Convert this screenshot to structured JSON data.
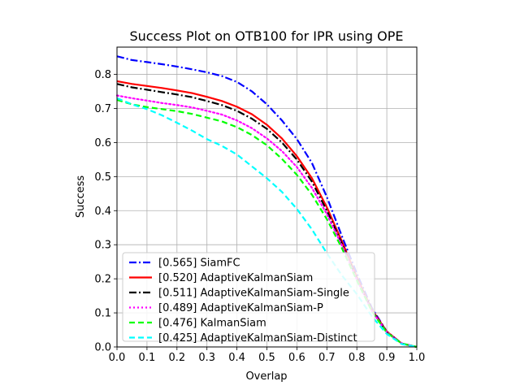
{
  "chart_data": {
    "type": "line",
    "title": "Success Plot on OTB100 for IPR using OPE",
    "xlabel": "Overlap",
    "ylabel": "Success",
    "xlim": [
      0.0,
      1.0
    ],
    "ylim": [
      0.0,
      0.88
    ],
    "xticks": [
      "0.0",
      "0.1",
      "0.2",
      "0.3",
      "0.4",
      "0.5",
      "0.6",
      "0.7",
      "0.8",
      "0.9",
      "1.0"
    ],
    "yticks": [
      "0.0",
      "0.1",
      "0.2",
      "0.3",
      "0.4",
      "0.5",
      "0.6",
      "0.7",
      "0.8"
    ],
    "grid": true,
    "legend_position": "lower-left",
    "series": [
      {
        "name": "[0.565] SiamFC",
        "color": "#0000ff",
        "linestyle": "dashdot",
        "x": [
          0.0,
          0.05,
          0.1,
          0.15,
          0.2,
          0.25,
          0.3,
          0.35,
          0.4,
          0.45,
          0.5,
          0.55,
          0.6,
          0.65,
          0.7,
          0.75,
          0.8,
          0.85,
          0.9,
          0.95,
          1.0
        ],
        "y": [
          0.853,
          0.842,
          0.836,
          0.83,
          0.823,
          0.815,
          0.806,
          0.795,
          0.778,
          0.75,
          0.712,
          0.665,
          0.61,
          0.54,
          0.44,
          0.325,
          0.215,
          0.115,
          0.045,
          0.01,
          0.0
        ]
      },
      {
        "name": "[0.520] AdaptiveKalmanSiam",
        "color": "#ff0000",
        "linestyle": "solid",
        "x": [
          0.0,
          0.05,
          0.1,
          0.15,
          0.2,
          0.25,
          0.3,
          0.35,
          0.4,
          0.45,
          0.5,
          0.55,
          0.6,
          0.65,
          0.7,
          0.75,
          0.8,
          0.85,
          0.9,
          0.95,
          1.0
        ],
        "y": [
          0.78,
          0.772,
          0.766,
          0.76,
          0.753,
          0.745,
          0.734,
          0.722,
          0.705,
          0.683,
          0.652,
          0.612,
          0.56,
          0.495,
          0.41,
          0.31,
          0.205,
          0.11,
          0.045,
          0.01,
          0.0
        ]
      },
      {
        "name": "[0.511] AdaptiveKalmanSiam-Single",
        "color": "#000000",
        "linestyle": "dashdot",
        "x": [
          0.0,
          0.05,
          0.1,
          0.15,
          0.2,
          0.25,
          0.3,
          0.35,
          0.4,
          0.45,
          0.5,
          0.55,
          0.6,
          0.65,
          0.7,
          0.75,
          0.8,
          0.85,
          0.9,
          0.95,
          1.0
        ],
        "y": [
          0.772,
          0.762,
          0.755,
          0.748,
          0.741,
          0.733,
          0.722,
          0.71,
          0.693,
          0.67,
          0.64,
          0.6,
          0.55,
          0.485,
          0.4,
          0.303,
          0.2,
          0.108,
          0.043,
          0.01,
          0.0
        ]
      },
      {
        "name": "[0.489] AdaptiveKalmanSiam-P",
        "color": "#ff00ff",
        "linestyle": "dotted",
        "x": [
          0.0,
          0.05,
          0.1,
          0.15,
          0.2,
          0.25,
          0.3,
          0.35,
          0.4,
          0.45,
          0.5,
          0.55,
          0.6,
          0.65,
          0.7,
          0.75,
          0.8,
          0.85,
          0.9,
          0.95,
          1.0
        ],
        "y": [
          0.738,
          0.73,
          0.723,
          0.716,
          0.71,
          0.703,
          0.693,
          0.682,
          0.665,
          0.642,
          0.612,
          0.575,
          0.528,
          0.467,
          0.39,
          0.298,
          0.198,
          0.106,
          0.043,
          0.01,
          0.0
        ]
      },
      {
        "name": "[0.476] KalmanSiam",
        "color": "#00ff00",
        "linestyle": "dashed",
        "x": [
          0.0,
          0.05,
          0.1,
          0.15,
          0.2,
          0.25,
          0.3,
          0.35,
          0.4,
          0.45,
          0.5,
          0.55,
          0.6,
          0.65,
          0.7,
          0.75,
          0.8,
          0.85,
          0.9,
          0.95,
          1.0
        ],
        "y": [
          0.725,
          0.712,
          0.704,
          0.698,
          0.692,
          0.684,
          0.673,
          0.662,
          0.645,
          0.622,
          0.592,
          0.552,
          0.505,
          0.447,
          0.375,
          0.29,
          0.195,
          0.105,
          0.042,
          0.01,
          0.0
        ]
      },
      {
        "name": "[0.425] AdaptiveKalmanSiam-Distinct",
        "color": "#00ffff",
        "linestyle": "dashed",
        "x": [
          0.0,
          0.05,
          0.1,
          0.15,
          0.2,
          0.25,
          0.3,
          0.35,
          0.4,
          0.45,
          0.5,
          0.55,
          0.6,
          0.65,
          0.7,
          0.75,
          0.8,
          0.85,
          0.9,
          0.95,
          1.0
        ],
        "y": [
          0.73,
          0.712,
          0.698,
          0.68,
          0.658,
          0.635,
          0.61,
          0.59,
          0.565,
          0.53,
          0.495,
          0.455,
          0.405,
          0.345,
          0.275,
          0.21,
          0.155,
          0.09,
          0.038,
          0.008,
          0.0
        ]
      }
    ]
  }
}
